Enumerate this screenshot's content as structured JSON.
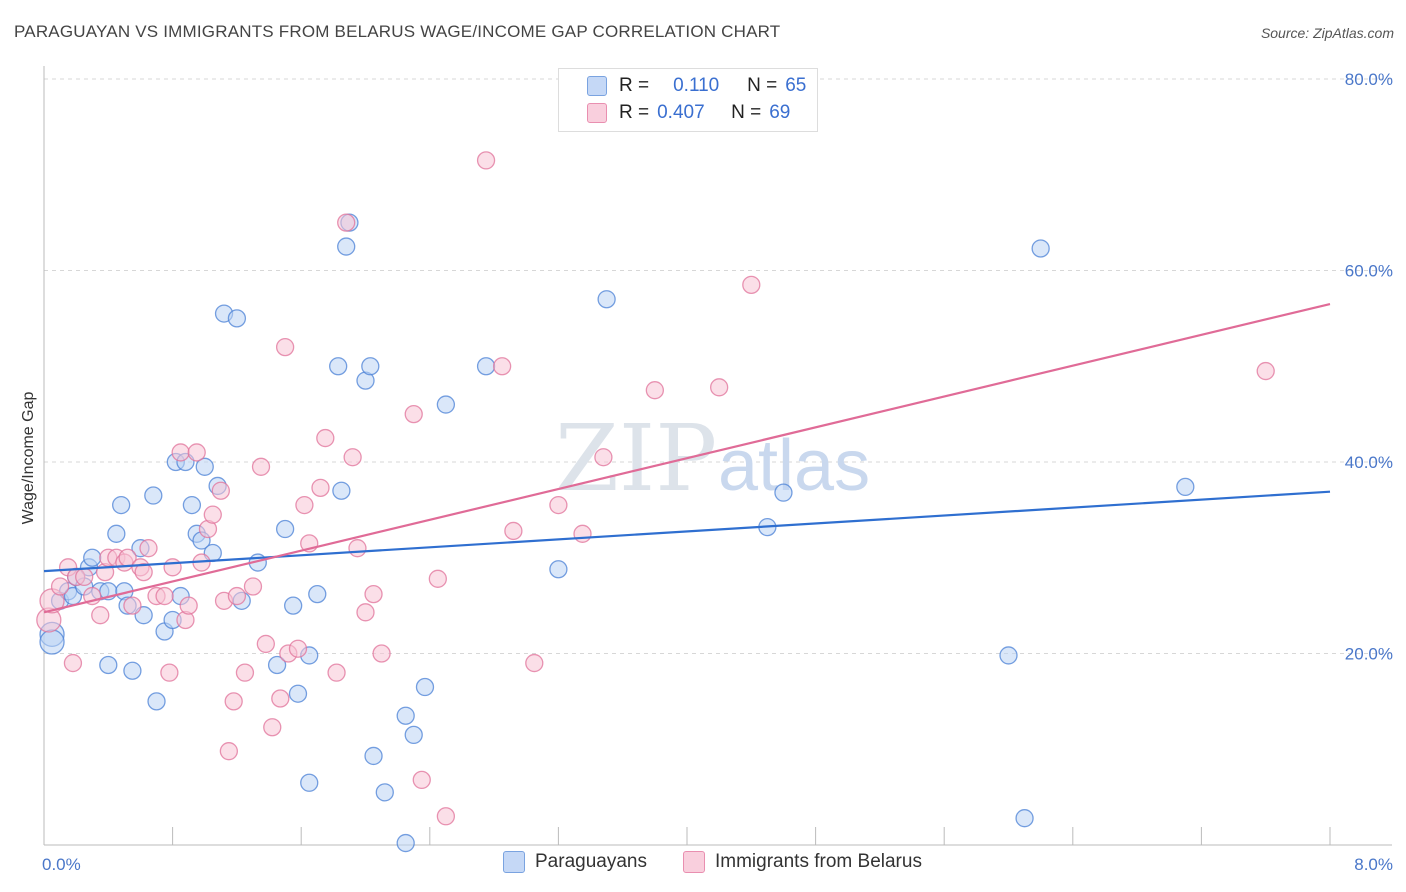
{
  "header": {
    "title": "PARAGUAYAN VS IMMIGRANTS FROM BELARUS WAGE/INCOME GAP CORRELATION CHART",
    "source": "Source: ZipAtlas.com"
  },
  "watermark": {
    "zip": "ZIP",
    "atlas": "atlas"
  },
  "legend": {
    "rows": [
      {
        "r_label": "R =",
        "r_value": "0.110",
        "n_label": "N =",
        "n_value": "65"
      },
      {
        "r_label": "R =",
        "r_value": "0.407",
        "n_label": "N =",
        "n_value": "69"
      }
    ],
    "bottom": [
      "Paraguayans",
      "Immigrants from Belarus"
    ]
  },
  "colors": {
    "blue": "#4a80d6",
    "blue_fill": "#bcd3f4",
    "pink": "#e07199",
    "pink_fill": "#f7c5d6",
    "tick": "#4a77c9"
  },
  "chart_data": {
    "type": "scatter",
    "title": "PARAGUAYAN VS IMMIGRANTS FROM BELARUS WAGE/INCOME GAP CORRELATION CHART",
    "xlabel": "",
    "ylabel": "Wage/Income Gap",
    "xlim": [
      0,
      8
    ],
    "ylim": [
      0,
      80
    ],
    "x_tick_labels": [
      "0.0%",
      "8.0%"
    ],
    "y_ticks": [
      20,
      40,
      60,
      80
    ],
    "y_tick_labels": [
      "20.0%",
      "40.0%",
      "60.0%",
      "80.0%"
    ],
    "grid": true,
    "series": [
      {
        "name": "Paraguayans",
        "r": 0.11,
        "n": 65,
        "trend": {
          "x": [
            0,
            8
          ],
          "y": [
            28.6,
            36.9
          ]
        },
        "points": [
          [
            0.05,
            22
          ],
          [
            0.05,
            21.2
          ],
          [
            0.1,
            25.5
          ],
          [
            0.15,
            26.5
          ],
          [
            0.18,
            26
          ],
          [
            0.2,
            28
          ],
          [
            0.25,
            27
          ],
          [
            0.28,
            29
          ],
          [
            0.3,
            30
          ],
          [
            0.35,
            26.5
          ],
          [
            0.4,
            18.8
          ],
          [
            0.4,
            26.5
          ],
          [
            0.45,
            32.5
          ],
          [
            0.48,
            35.5
          ],
          [
            0.5,
            26.5
          ],
          [
            0.52,
            25
          ],
          [
            0.55,
            18.2
          ],
          [
            0.6,
            31
          ],
          [
            0.62,
            24
          ],
          [
            0.68,
            36.5
          ],
          [
            0.7,
            15
          ],
          [
            0.75,
            22.3
          ],
          [
            0.8,
            23.5
          ],
          [
            0.82,
            40
          ],
          [
            0.85,
            26
          ],
          [
            0.88,
            40
          ],
          [
            0.92,
            35.5
          ],
          [
            0.95,
            32.5
          ],
          [
            0.98,
            31.8
          ],
          [
            1.0,
            39.5
          ],
          [
            1.05,
            30.5
          ],
          [
            1.08,
            37.5
          ],
          [
            1.12,
            55.5
          ],
          [
            1.2,
            55
          ],
          [
            1.23,
            25.5
          ],
          [
            1.33,
            29.5
          ],
          [
            1.45,
            18.8
          ],
          [
            1.5,
            33
          ],
          [
            1.55,
            25
          ],
          [
            1.58,
            15.8
          ],
          [
            1.65,
            6.5
          ],
          [
            1.65,
            19.8
          ],
          [
            1.7,
            26.2
          ],
          [
            1.83,
            50
          ],
          [
            1.85,
            37
          ],
          [
            1.88,
            62.5
          ],
          [
            1.9,
            65
          ],
          [
            2.0,
            48.5
          ],
          [
            2.03,
            50
          ],
          [
            2.05,
            9.3
          ],
          [
            2.12,
            5.5
          ],
          [
            2.25,
            13.5
          ],
          [
            2.3,
            11.5
          ],
          [
            2.37,
            16.5
          ],
          [
            2.5,
            46
          ],
          [
            2.75,
            50
          ],
          [
            2.25,
            0.2
          ],
          [
            3.2,
            28.8
          ],
          [
            3.5,
            57
          ],
          [
            4.5,
            33.2
          ],
          [
            4.6,
            36.8
          ],
          [
            6.0,
            19.8
          ],
          [
            6.2,
            62.3
          ],
          [
            6.1,
            2.8
          ],
          [
            7.1,
            37.4
          ]
        ]
      },
      {
        "name": "Immigrants from Belarus",
        "r": 0.407,
        "n": 69,
        "trend": {
          "x": [
            0,
            8
          ],
          "y": [
            24.3,
            56.5
          ]
        },
        "points": [
          [
            0.03,
            23.5
          ],
          [
            0.05,
            25.5
          ],
          [
            0.1,
            27
          ],
          [
            0.15,
            29
          ],
          [
            0.18,
            19
          ],
          [
            0.2,
            28
          ],
          [
            0.25,
            28
          ],
          [
            0.3,
            26
          ],
          [
            0.35,
            24
          ],
          [
            0.38,
            28.5
          ],
          [
            0.4,
            30
          ],
          [
            0.45,
            30
          ],
          [
            0.5,
            29.5
          ],
          [
            0.52,
            30
          ],
          [
            0.55,
            25
          ],
          [
            0.6,
            29
          ],
          [
            0.62,
            28.5
          ],
          [
            0.65,
            31
          ],
          [
            0.7,
            26
          ],
          [
            0.75,
            26
          ],
          [
            0.78,
            18
          ],
          [
            0.8,
            29
          ],
          [
            0.85,
            41
          ],
          [
            0.88,
            23.5
          ],
          [
            0.9,
            25
          ],
          [
            0.95,
            41
          ],
          [
            0.98,
            29.5
          ],
          [
            1.02,
            33
          ],
          [
            1.05,
            34.5
          ],
          [
            1.1,
            37
          ],
          [
            1.12,
            25.5
          ],
          [
            1.15,
            9.8
          ],
          [
            1.18,
            15
          ],
          [
            1.2,
            26
          ],
          [
            1.25,
            18
          ],
          [
            1.3,
            27
          ],
          [
            1.35,
            39.5
          ],
          [
            1.38,
            21
          ],
          [
            1.42,
            12.3
          ],
          [
            1.47,
            15.3
          ],
          [
            1.5,
            52
          ],
          [
            1.52,
            20
          ],
          [
            1.58,
            20.5
          ],
          [
            1.62,
            35.5
          ],
          [
            1.65,
            31.5
          ],
          [
            1.72,
            37.3
          ],
          [
            1.75,
            42.5
          ],
          [
            1.82,
            18
          ],
          [
            1.88,
            65
          ],
          [
            1.92,
            40.5
          ],
          [
            1.95,
            31
          ],
          [
            2.0,
            24.3
          ],
          [
            2.05,
            26.2
          ],
          [
            2.1,
            20
          ],
          [
            2.3,
            45
          ],
          [
            2.35,
            6.8
          ],
          [
            2.45,
            27.8
          ],
          [
            2.5,
            3
          ],
          [
            2.75,
            71.5
          ],
          [
            2.85,
            50
          ],
          [
            2.92,
            32.8
          ],
          [
            3.05,
            19
          ],
          [
            3.2,
            35.5
          ],
          [
            3.35,
            32.5
          ],
          [
            3.48,
            40.5
          ],
          [
            3.8,
            47.5
          ],
          [
            4.2,
            47.8
          ],
          [
            4.4,
            58.5
          ],
          [
            7.6,
            49.5
          ]
        ]
      }
    ]
  }
}
